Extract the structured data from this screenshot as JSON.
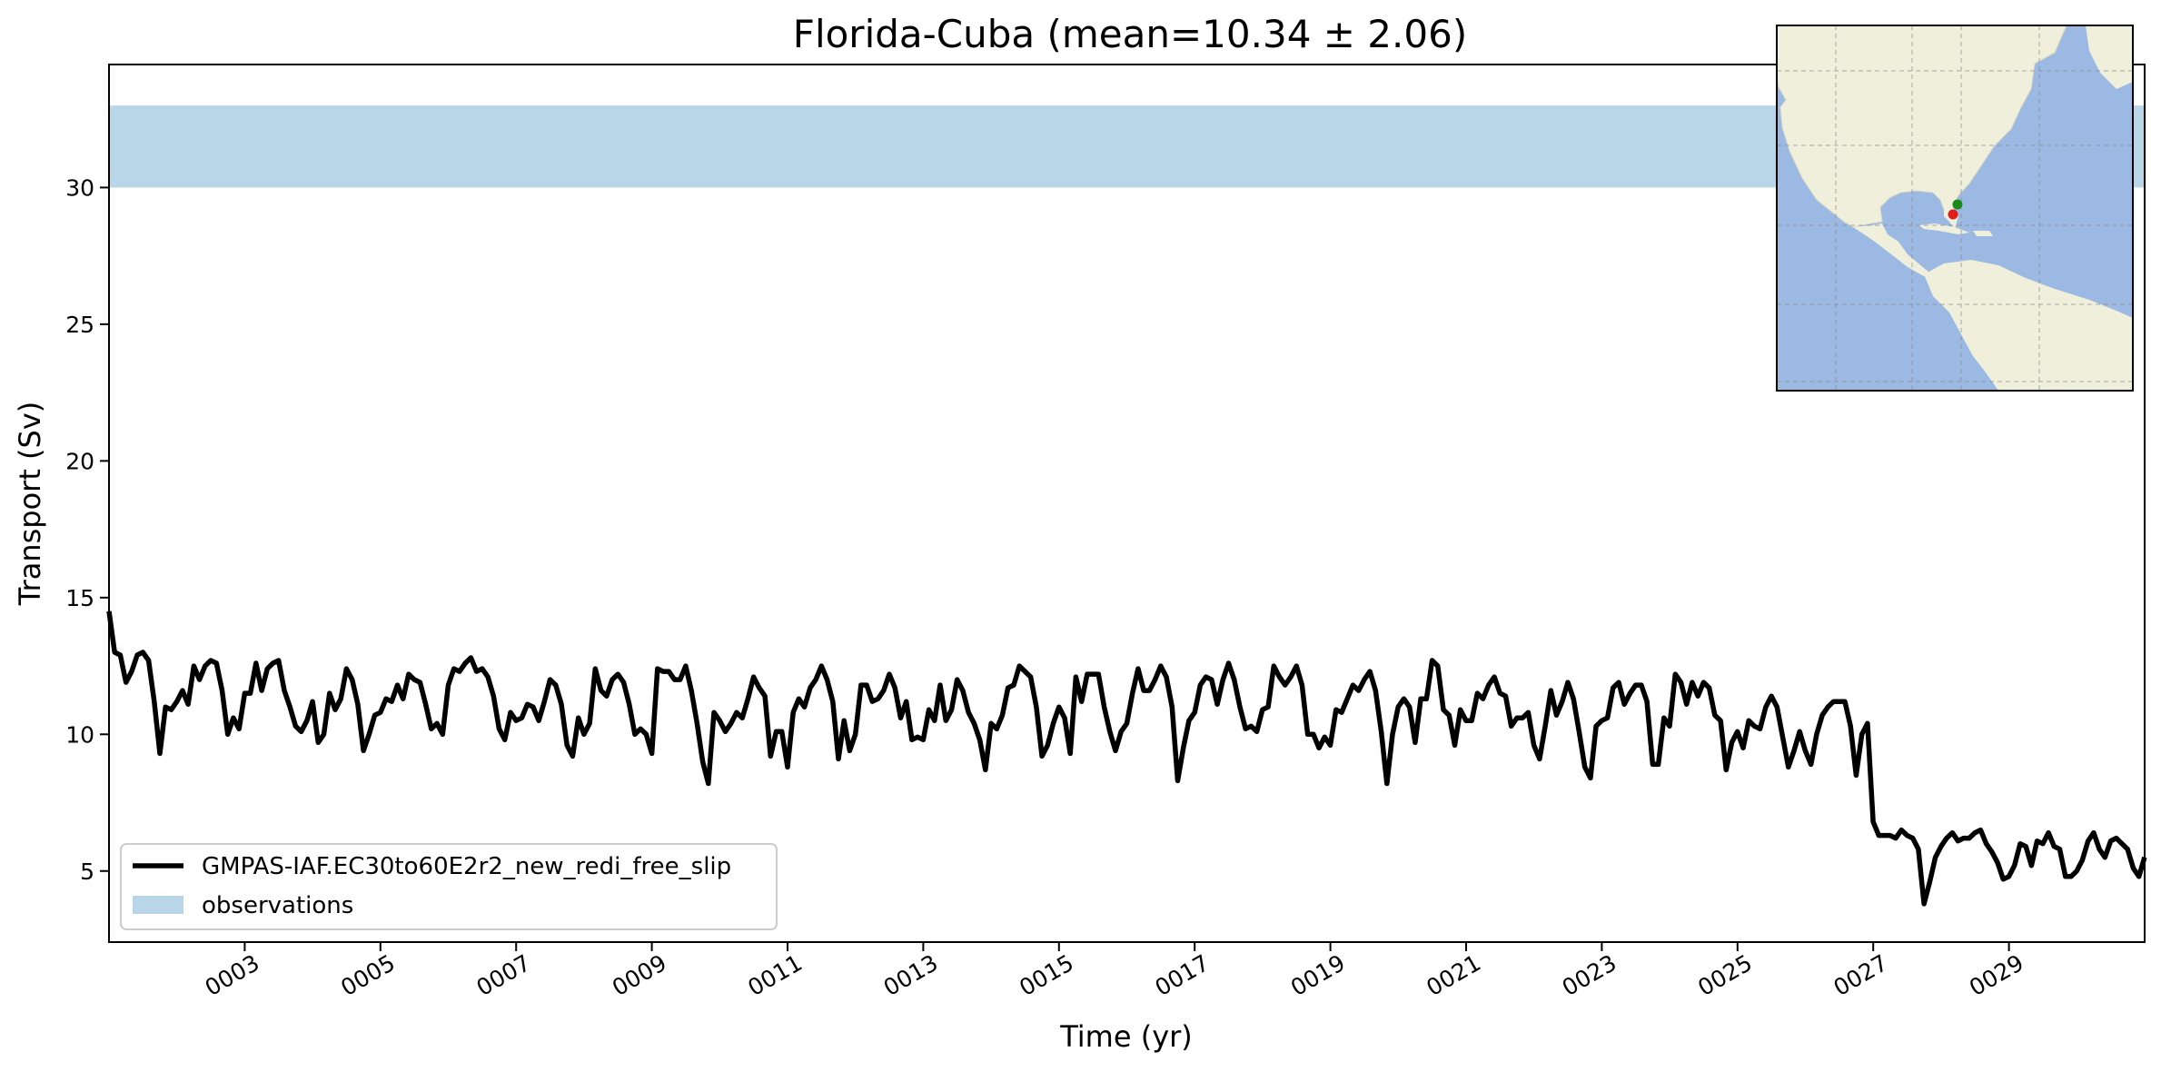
{
  "chart_data": {
    "type": "line",
    "title": "Florida-Cuba (mean=10.34 ± 2.06)",
    "xlabel": "Time (yr)",
    "ylabel": "Transport (Sv)",
    "xlim": [
      1,
      31
    ],
    "ylim": [
      2.4,
      34.5
    ],
    "x_ticks": [
      3,
      5,
      7,
      9,
      11,
      13,
      15,
      17,
      19,
      21,
      23,
      25,
      27,
      29
    ],
    "x_tick_labels": [
      "0003",
      "0005",
      "0007",
      "0009",
      "0011",
      "0013",
      "0015",
      "0017",
      "0019",
      "0021",
      "0023",
      "0025",
      "0027",
      "0029"
    ],
    "y_ticks": [
      5,
      10,
      15,
      20,
      25,
      30
    ],
    "y_tick_labels": [
      "5",
      "10",
      "15",
      "20",
      "25",
      "30"
    ],
    "grid": false,
    "legend_position": "lower-left",
    "observations_band": {
      "name": "observations",
      "y_min": 30,
      "y_max": 33,
      "color": "#b9d5e8"
    },
    "series": [
      {
        "name": "GMPAS-IAF.EC30to60E2r2_new_redi_free_slip",
        "color": "#000000",
        "x_start": 1.0,
        "x_step": 0.08333,
        "values": [
          14.5,
          13.0,
          12.9,
          11.9,
          12.3,
          12.9,
          13.0,
          12.7,
          11.2,
          9.3,
          11.0,
          10.9,
          11.2,
          11.6,
          11.1,
          12.5,
          12.0,
          12.5,
          12.7,
          12.6,
          11.6,
          10.0,
          10.6,
          10.2,
          11.5,
          11.5,
          12.6,
          11.6,
          12.4,
          12.6,
          12.7,
          11.6,
          11.0,
          10.3,
          10.1,
          10.5,
          11.2,
          9.7,
          10.0,
          11.5,
          10.9,
          11.3,
          12.4,
          12.0,
          11.1,
          9.4,
          10.0,
          10.7,
          10.8,
          11.3,
          11.2,
          11.8,
          11.3,
          12.2,
          12.0,
          11.9,
          11.1,
          10.2,
          10.4,
          10.0,
          11.8,
          12.4,
          12.3,
          12.6,
          12.8,
          12.3,
          12.4,
          12.1,
          11.4,
          10.2,
          9.8,
          10.8,
          10.5,
          10.6,
          11.1,
          11.0,
          10.5,
          11.2,
          12.0,
          11.8,
          11.1,
          9.6,
          9.2,
          10.6,
          10.0,
          10.4,
          12.4,
          11.6,
          11.4,
          12.0,
          12.2,
          11.9,
          11.1,
          10.0,
          10.2,
          10.0,
          9.3,
          12.4,
          12.3,
          12.3,
          12.0,
          12.0,
          12.5,
          11.6,
          10.4,
          9.0,
          8.2,
          10.8,
          10.5,
          10.1,
          10.4,
          10.8,
          10.6,
          11.3,
          12.1,
          11.7,
          11.4,
          9.2,
          10.1,
          10.1,
          8.8,
          10.8,
          11.3,
          11.0,
          11.7,
          12.0,
          12.5,
          12.0,
          11.2,
          9.1,
          10.5,
          9.4,
          10.0,
          11.8,
          11.8,
          11.2,
          11.3,
          11.6,
          12.2,
          11.7,
          10.6,
          11.2,
          9.8,
          9.9,
          9.8,
          10.9,
          10.5,
          11.8,
          10.5,
          10.9,
          12.0,
          11.6,
          10.8,
          10.4,
          9.8,
          8.7,
          10.4,
          10.2,
          10.7,
          11.7,
          11.8,
          12.5,
          12.3,
          12.1,
          11.0,
          9.2,
          9.6,
          10.4,
          11.0,
          10.6,
          9.3,
          12.1,
          11.2,
          12.2,
          12.2,
          12.2,
          11.0,
          10.1,
          9.4,
          10.1,
          10.4,
          11.5,
          12.4,
          11.6,
          11.6,
          12.0,
          12.5,
          12.1,
          11.0,
          8.3,
          9.5,
          10.5,
          10.8,
          11.8,
          12.1,
          12.0,
          11.1,
          12.0,
          12.6,
          12.0,
          11.0,
          10.2,
          10.3,
          10.1,
          10.9,
          11.0,
          12.5,
          12.1,
          11.8,
          12.1,
          12.5,
          11.8,
          10.0,
          10.0,
          9.5,
          9.9,
          9.6,
          10.9,
          10.8,
          11.3,
          11.8,
          11.6,
          12.0,
          12.3,
          11.6,
          10.1,
          8.2,
          10.0,
          11.0,
          11.3,
          11.0,
          9.7,
          11.3,
          11.3,
          12.7,
          12.5,
          10.9,
          10.7,
          9.6,
          10.9,
          10.5,
          10.5,
          11.5,
          11.3,
          11.8,
          12.1,
          11.5,
          11.4,
          10.3,
          10.6,
          10.6,
          10.8,
          9.6,
          9.1,
          10.3,
          11.6,
          10.7,
          11.2,
          11.9,
          11.3,
          10.1,
          8.8,
          8.4,
          10.3,
          10.5,
          10.6,
          11.7,
          11.9,
          11.1,
          11.5,
          11.8,
          11.8,
          11.2,
          8.9,
          8.9,
          10.6,
          10.3,
          12.2,
          11.9,
          11.1,
          11.9,
          11.4,
          11.9,
          11.7,
          10.7,
          10.5,
          8.7,
          9.7,
          10.1,
          9.5,
          10.5,
          10.3,
          10.2,
          11.0,
          11.4,
          11.0,
          9.9,
          8.8,
          9.4,
          10.1,
          9.4,
          8.9,
          10.0,
          10.7,
          11.0,
          11.2,
          11.2,
          11.2,
          10.3,
          8.5,
          10.0,
          10.4,
          6.8,
          6.3,
          6.3,
          6.3,
          6.2,
          6.5,
          6.3,
          6.2,
          5.8,
          3.8,
          4.6,
          5.5,
          5.9,
          6.2,
          6.4,
          6.1,
          6.2,
          6.2,
          6.4,
          6.5,
          6.0,
          5.7,
          5.3,
          4.7,
          4.8,
          5.2,
          6.0,
          5.9,
          5.2,
          6.1,
          6.0,
          6.4,
          5.9,
          5.8,
          4.8,
          4.8,
          5.0,
          5.4,
          6.1,
          6.4,
          5.8,
          5.5,
          6.1,
          6.2,
          6.0,
          5.8,
          5.1,
          4.8,
          5.5
        ]
      }
    ],
    "inset_map": {
      "markers": [
        {
          "color": "#1b8a1b",
          "lon": -81.0,
          "lat": 25.2
        },
        {
          "color": "#e21b1b",
          "lon": -81.8,
          "lat": 23.6
        }
      ]
    }
  }
}
